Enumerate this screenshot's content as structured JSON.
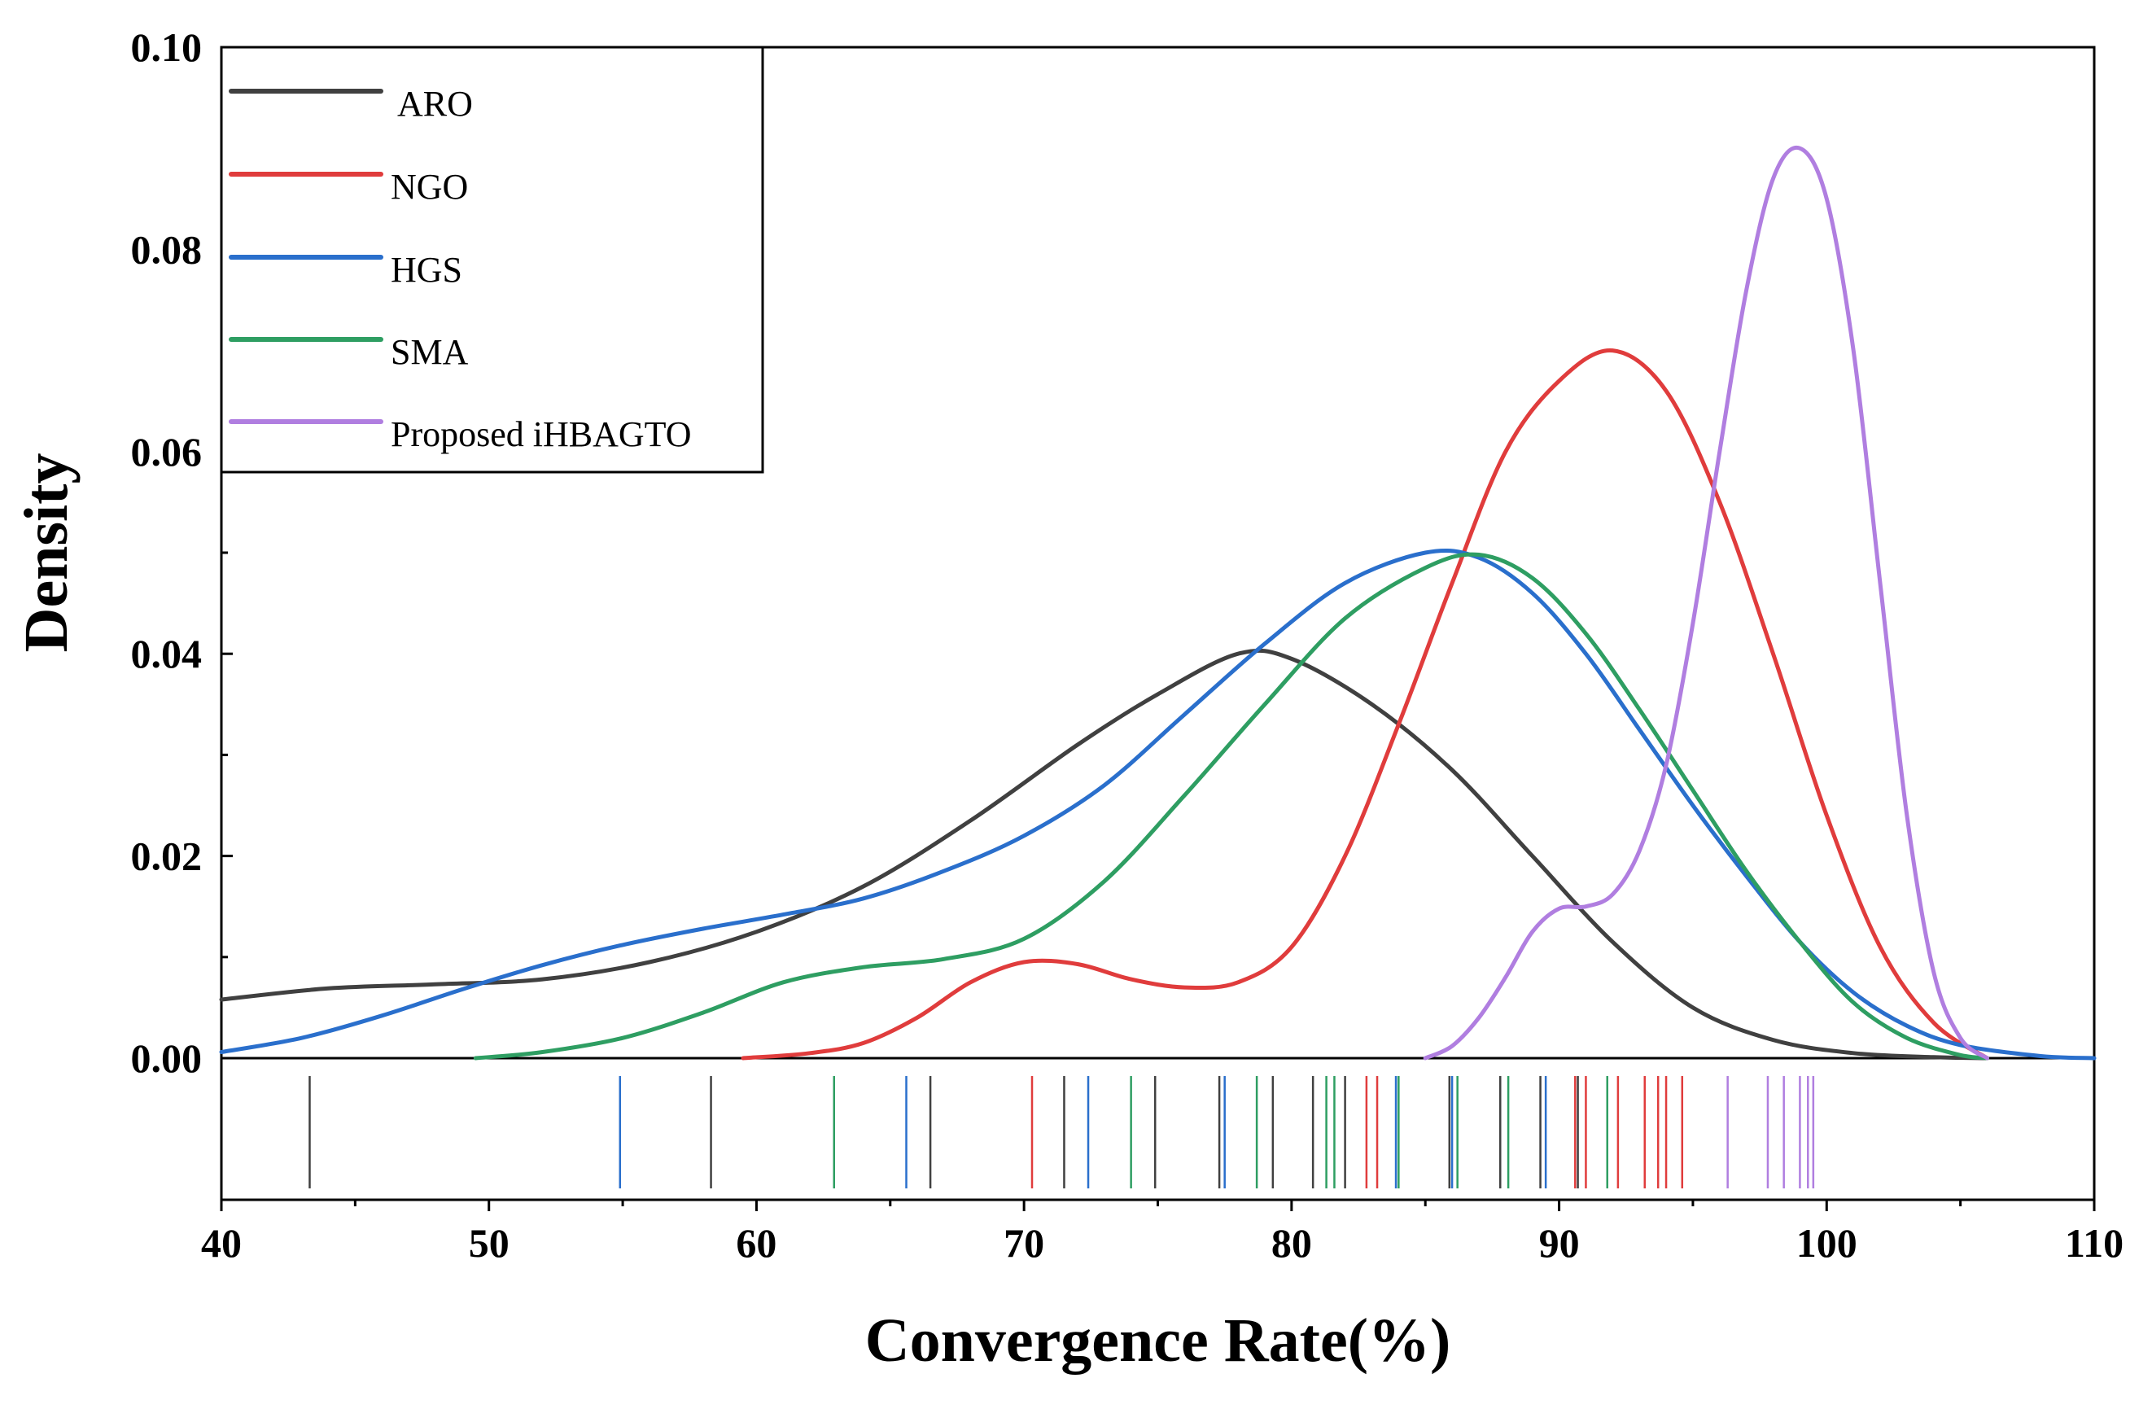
{
  "chart_data": {
    "type": "line",
    "subtype": "kernel-density-with-rug",
    "xlabel": "Convergence Rate(%)",
    "ylabel": "Density",
    "xlim": [
      40,
      110
    ],
    "ylim": [
      0,
      0.1
    ],
    "x_ticks": [
      40,
      50,
      60,
      70,
      80,
      90,
      100,
      110
    ],
    "y_ticks": [
      0.0,
      0.02,
      0.04,
      0.06,
      0.08,
      0.1
    ],
    "y_tick_labels": [
      "0.00",
      "0.02",
      "0.04",
      "0.06",
      "0.08",
      "0.10"
    ],
    "legend_position": "top-left",
    "series": [
      {
        "name": "ARO",
        "legend_label": "ARO",
        "color": "#404040",
        "curve": [
          [
            40,
            0.0058
          ],
          [
            44,
            0.0069
          ],
          [
            48,
            0.0073
          ],
          [
            52,
            0.0078
          ],
          [
            56,
            0.0095
          ],
          [
            60,
            0.0125
          ],
          [
            64,
            0.017
          ],
          [
            68,
            0.0235
          ],
          [
            72,
            0.031
          ],
          [
            75,
            0.036
          ],
          [
            78,
            0.04
          ],
          [
            80,
            0.0395
          ],
          [
            83,
            0.035
          ],
          [
            86,
            0.0285
          ],
          [
            89,
            0.02
          ],
          [
            92,
            0.0115
          ],
          [
            95,
            0.005
          ],
          [
            98,
            0.0018
          ],
          [
            101,
            0.0005
          ],
          [
            104,
            0.0001
          ],
          [
            106,
            0
          ]
        ],
        "rug": [
          43.3,
          58.3,
          66.5,
          71.5,
          74.9,
          77.3,
          79.3,
          80.8,
          82.0,
          85.9,
          87.8,
          89.3,
          90.7
        ]
      },
      {
        "name": "NGO",
        "legend_label": "NGO",
        "color": "#e03c3c",
        "curve": [
          [
            59.5,
            0
          ],
          [
            62,
            0.0005
          ],
          [
            64,
            0.0015
          ],
          [
            66,
            0.004
          ],
          [
            68,
            0.0075
          ],
          [
            70,
            0.0095
          ],
          [
            72,
            0.0093
          ],
          [
            74,
            0.0078
          ],
          [
            76,
            0.007
          ],
          [
            78,
            0.0075
          ],
          [
            80,
            0.011
          ],
          [
            82,
            0.02
          ],
          [
            84,
            0.033
          ],
          [
            86,
            0.047
          ],
          [
            88,
            0.06
          ],
          [
            90,
            0.067
          ],
          [
            92,
            0.07
          ],
          [
            94,
            0.066
          ],
          [
            96,
            0.055
          ],
          [
            98,
            0.04
          ],
          [
            100,
            0.024
          ],
          [
            102,
            0.011
          ],
          [
            104,
            0.0035
          ],
          [
            106,
            0
          ]
        ],
        "rug": [
          70.3,
          82.8,
          83.2,
          90.6,
          91.0,
          92.2,
          93.2,
          93.7,
          94.0,
          94.6
        ]
      },
      {
        "name": "HGS",
        "legend_label": "HGS",
        "color": "#2a6fcc",
        "curve": [
          [
            40,
            0.0006
          ],
          [
            43,
            0.002
          ],
          [
            46,
            0.0042
          ],
          [
            49,
            0.0068
          ],
          [
            52,
            0.0092
          ],
          [
            55,
            0.0112
          ],
          [
            58,
            0.0128
          ],
          [
            61,
            0.0142
          ],
          [
            64,
            0.0158
          ],
          [
            67,
            0.0185
          ],
          [
            70,
            0.022
          ],
          [
            73,
            0.027
          ],
          [
            76,
            0.034
          ],
          [
            79,
            0.041
          ],
          [
            82,
            0.047
          ],
          [
            85,
            0.05
          ],
          [
            87,
            0.0495
          ],
          [
            89,
            0.046
          ],
          [
            91,
            0.04
          ],
          [
            93,
            0.0325
          ],
          [
            95,
            0.025
          ],
          [
            97,
            0.018
          ],
          [
            99,
            0.0115
          ],
          [
            101,
            0.0065
          ],
          [
            103,
            0.0032
          ],
          [
            105,
            0.0013
          ],
          [
            108,
            0.0002
          ],
          [
            110,
            0
          ]
        ],
        "rug": [
          54.9,
          65.6,
          72.4,
          77.5,
          83.9,
          86.0,
          89.5
        ]
      },
      {
        "name": "SMA",
        "legend_label": "SMA",
        "color": "#2e9e62",
        "curve": [
          [
            49.5,
            0
          ],
          [
            52,
            0.0006
          ],
          [
            55,
            0.002
          ],
          [
            58,
            0.0045
          ],
          [
            61,
            0.0075
          ],
          [
            64,
            0.009
          ],
          [
            67,
            0.0098
          ],
          [
            70,
            0.0118
          ],
          [
            73,
            0.0175
          ],
          [
            76,
            0.026
          ],
          [
            79,
            0.035
          ],
          [
            82,
            0.0435
          ],
          [
            85,
            0.0485
          ],
          [
            87,
            0.0498
          ],
          [
            89,
            0.0475
          ],
          [
            91,
            0.042
          ],
          [
            93,
            0.0345
          ],
          [
            95,
            0.0265
          ],
          [
            97,
            0.0185
          ],
          [
            99,
            0.0115
          ],
          [
            101,
            0.0055
          ],
          [
            103,
            0.002
          ],
          [
            105,
            0.0003
          ],
          [
            106,
            0
          ]
        ],
        "rug": [
          62.9,
          74.0,
          78.7,
          81.3,
          81.6,
          84.0,
          86.2,
          88.1,
          91.8
        ]
      },
      {
        "name": "Proposed iHBAGTO",
        "legend_label": "Proposed iHBAGTO",
        "color": "#b07ee0",
        "curve": [
          [
            85,
            0
          ],
          [
            86,
            0.0012
          ],
          [
            87,
            0.004
          ],
          [
            88,
            0.008
          ],
          [
            89,
            0.0125
          ],
          [
            90,
            0.0148
          ],
          [
            91,
            0.015
          ],
          [
            92,
            0.0162
          ],
          [
            93,
            0.0205
          ],
          [
            94,
            0.029
          ],
          [
            95,
            0.043
          ],
          [
            96,
            0.06
          ],
          [
            97,
            0.076
          ],
          [
            98,
            0.087
          ],
          [
            99,
            0.09
          ],
          [
            100,
            0.085
          ],
          [
            101,
            0.07
          ],
          [
            102,
            0.047
          ],
          [
            103,
            0.024
          ],
          [
            104,
            0.0085
          ],
          [
            105,
            0.002
          ],
          [
            106,
            0
          ]
        ],
        "rug": [
          96.3,
          97.8,
          98.4,
          99.0,
          99.3,
          99.5
        ]
      }
    ]
  }
}
